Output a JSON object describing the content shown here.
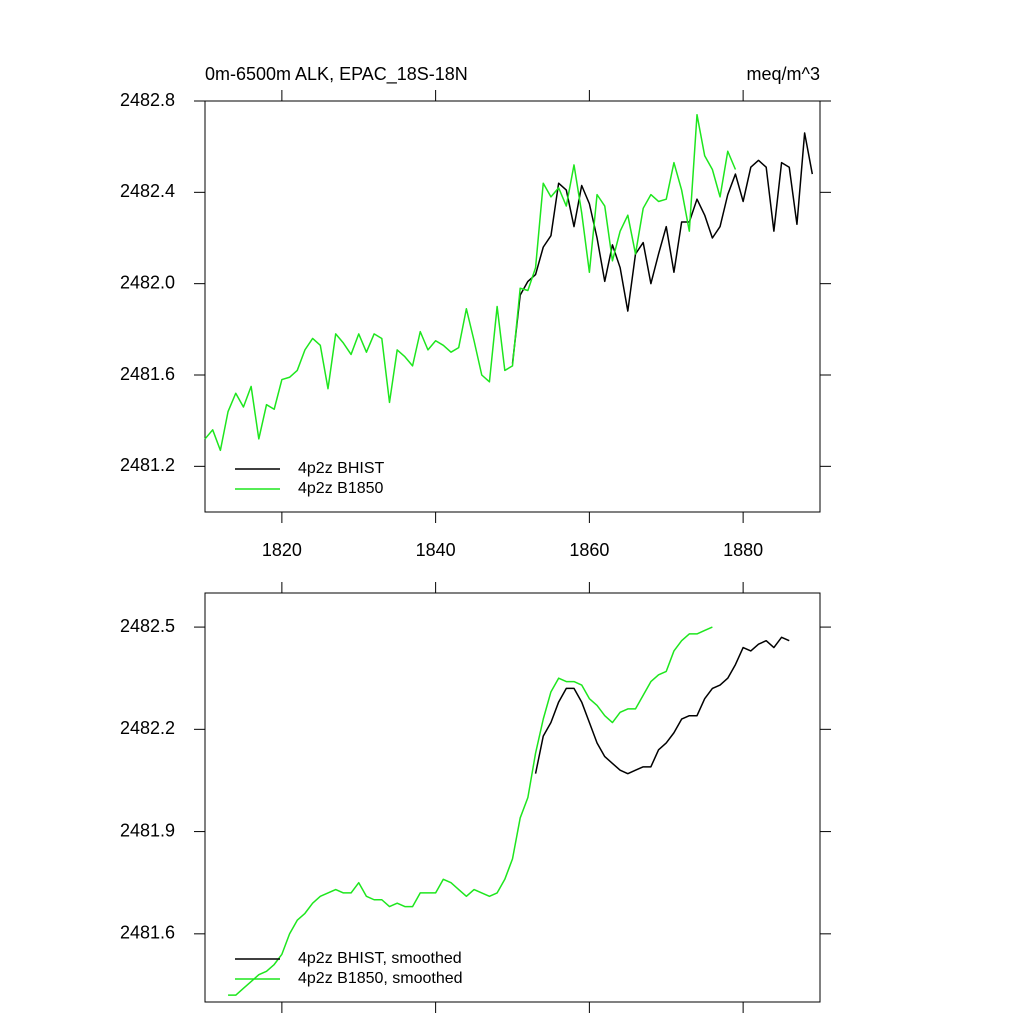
{
  "chart_data": [
    {
      "type": "line",
      "title": "0m-6500m ALK, EPAC_18S-18N",
      "units": "meq/m^3",
      "x": [
        1810,
        1811,
        1812,
        1813,
        1814,
        1815,
        1816,
        1817,
        1818,
        1819,
        1820,
        1821,
        1822,
        1823,
        1824,
        1825,
        1826,
        1827,
        1828,
        1829,
        1830,
        1831,
        1832,
        1833,
        1834,
        1835,
        1836,
        1837,
        1838,
        1839,
        1840,
        1841,
        1842,
        1843,
        1844,
        1845,
        1846,
        1847,
        1848,
        1849,
        1850,
        1851,
        1852,
        1853,
        1854,
        1855,
        1856,
        1857,
        1858,
        1859,
        1860,
        1861,
        1862,
        1863,
        1864,
        1865,
        1866,
        1867,
        1868,
        1869,
        1870,
        1871,
        1872,
        1873,
        1874,
        1875,
        1876,
        1877,
        1878,
        1879,
        1880,
        1881,
        1882,
        1883,
        1884,
        1885,
        1886,
        1887,
        1888,
        1889
      ],
      "series": [
        {
          "name": "4p2z BHIST",
          "color": "#000000",
          "values": [
            null,
            null,
            null,
            null,
            null,
            null,
            null,
            null,
            null,
            null,
            null,
            null,
            null,
            null,
            null,
            null,
            null,
            null,
            null,
            null,
            null,
            null,
            null,
            null,
            null,
            null,
            null,
            null,
            null,
            null,
            null,
            null,
            null,
            null,
            null,
            null,
            null,
            null,
            null,
            null,
            2481.65,
            2481.95,
            2482.01,
            2482.04,
            2482.16,
            2482.21,
            2482.44,
            2482.41,
            2482.25,
            2482.43,
            2482.35,
            2482.2,
            2482.01,
            2482.17,
            2482.07,
            2481.88,
            2482.13,
            2482.18,
            2482.0,
            2482.13,
            2482.25,
            2482.05,
            2482.27,
            2482.27,
            2482.37,
            2482.3,
            2482.2,
            2482.25,
            2482.39,
            2482.48,
            2482.36,
            2482.51,
            2482.54,
            2482.51,
            2482.23,
            2482.53,
            2482.51,
            2482.26,
            2482.66,
            2482.48
          ]
        },
        {
          "name": "4p2z B1850",
          "color": "#1ee61e",
          "values": [
            2481.32,
            2481.36,
            2481.27,
            2481.44,
            2481.52,
            2481.46,
            2481.55,
            2481.32,
            2481.47,
            2481.45,
            2481.58,
            2481.59,
            2481.62,
            2481.71,
            2481.76,
            2481.73,
            2481.54,
            2481.78,
            2481.74,
            2481.69,
            2481.78,
            2481.7,
            2481.78,
            2481.76,
            2481.48,
            2481.71,
            2481.68,
            2481.64,
            2481.79,
            2481.71,
            2481.75,
            2481.73,
            2481.7,
            2481.72,
            2481.89,
            2481.75,
            2481.6,
            2481.57,
            2481.9,
            2481.62,
            2481.64,
            2481.98,
            2481.97,
            2482.07,
            2482.44,
            2482.38,
            2482.42,
            2482.34,
            2482.52,
            2482.31,
            2482.05,
            2482.39,
            2482.34,
            2482.1,
            2482.23,
            2482.3,
            2482.13,
            2482.33,
            2482.39,
            2482.36,
            2482.37,
            2482.53,
            2482.41,
            2482.23,
            2482.74,
            2482.56,
            2482.5,
            2482.38,
            2482.58,
            2482.5,
            null,
            null,
            null,
            null,
            null,
            null,
            null,
            null,
            null,
            null
          ]
        }
      ],
      "xlim": [
        1810,
        1890
      ],
      "xticks": [
        1820,
        1840,
        1860,
        1880
      ],
      "ylim": [
        2481.0,
        2482.8
      ],
      "yticks": [
        2482.8,
        2482.4,
        {
          "value": 2482,
          "label": "2482.0"
        },
        2481.6,
        2481.2
      ],
      "show_xtick_labels": true,
      "legend": "lower left"
    },
    {
      "type": "line",
      "x": [
        1813,
        1814,
        1815,
        1816,
        1817,
        1818,
        1819,
        1820,
        1821,
        1822,
        1823,
        1824,
        1825,
        1826,
        1827,
        1828,
        1829,
        1830,
        1831,
        1832,
        1833,
        1834,
        1835,
        1836,
        1837,
        1838,
        1839,
        1840,
        1841,
        1842,
        1843,
        1844,
        1845,
        1846,
        1847,
        1848,
        1849,
        1850,
        1851,
        1852,
        1853,
        1854,
        1855,
        1856,
        1857,
        1858,
        1859,
        1860,
        1861,
        1862,
        1863,
        1864,
        1865,
        1866,
        1867,
        1868,
        1869,
        1870,
        1871,
        1872,
        1873,
        1874,
        1875,
        1876,
        1877,
        1878,
        1879,
        1880,
        1881,
        1882,
        1883,
        1884,
        1885,
        1886
      ],
      "series": [
        {
          "name": "4p2z BHIST, smoothed",
          "color": "#000000",
          "values": [
            null,
            null,
            null,
            null,
            null,
            null,
            null,
            null,
            null,
            null,
            null,
            null,
            null,
            null,
            null,
            null,
            null,
            null,
            null,
            null,
            null,
            null,
            null,
            null,
            null,
            null,
            null,
            null,
            null,
            null,
            null,
            null,
            null,
            null,
            null,
            null,
            null,
            null,
            null,
            null,
            2482.07,
            2482.18,
            2482.22,
            2482.28,
            2482.32,
            2482.32,
            2482.28,
            2482.22,
            2482.16,
            2482.12,
            2482.1,
            2482.08,
            2482.07,
            2482.08,
            2482.09,
            2482.09,
            2482.14,
            2482.16,
            2482.19,
            2482.23,
            2482.24,
            2482.24,
            2482.29,
            2482.32,
            2482.33,
            2482.35,
            2482.39,
            2482.44,
            2482.43,
            2482.45,
            2482.46,
            2482.44,
            2482.47,
            2482.46
          ]
        },
        {
          "name": "4p2z B1850, smoothed",
          "color": "#1ee61e",
          "values": [
            2481.42,
            2481.42,
            2481.44,
            2481.46,
            2481.48,
            2481.49,
            2481.51,
            2481.54,
            2481.6,
            2481.64,
            2481.66,
            2481.69,
            2481.71,
            2481.72,
            2481.73,
            2481.72,
            2481.72,
            2481.75,
            2481.71,
            2481.7,
            2481.7,
            2481.68,
            2481.69,
            2481.68,
            2481.68,
            2481.72,
            2481.72,
            2481.72,
            2481.76,
            2481.75,
            2481.73,
            2481.71,
            2481.73,
            2481.72,
            2481.71,
            2481.72,
            2481.76,
            2481.82,
            2481.94,
            2482.0,
            2482.13,
            2482.23,
            2482.31,
            2482.35,
            2482.34,
            2482.34,
            2482.33,
            2482.29,
            2482.27,
            2482.24,
            2482.22,
            2482.25,
            2482.26,
            2482.26,
            2482.3,
            2482.34,
            2482.36,
            2482.37,
            2482.43,
            2482.46,
            2482.48,
            2482.48,
            2482.49,
            2482.5,
            null,
            null,
            null,
            null,
            null,
            null,
            null,
            null,
            null,
            null
          ]
        }
      ],
      "xlim": [
        1810,
        1890
      ],
      "xticks": [
        1820,
        1840,
        1860,
        1880
      ],
      "ylim": [
        2481.4,
        2482.6
      ],
      "yticks": [
        2482.5,
        2482.2,
        2481.9,
        2481.6
      ],
      "show_xtick_labels": false,
      "legend": "lower left"
    }
  ]
}
